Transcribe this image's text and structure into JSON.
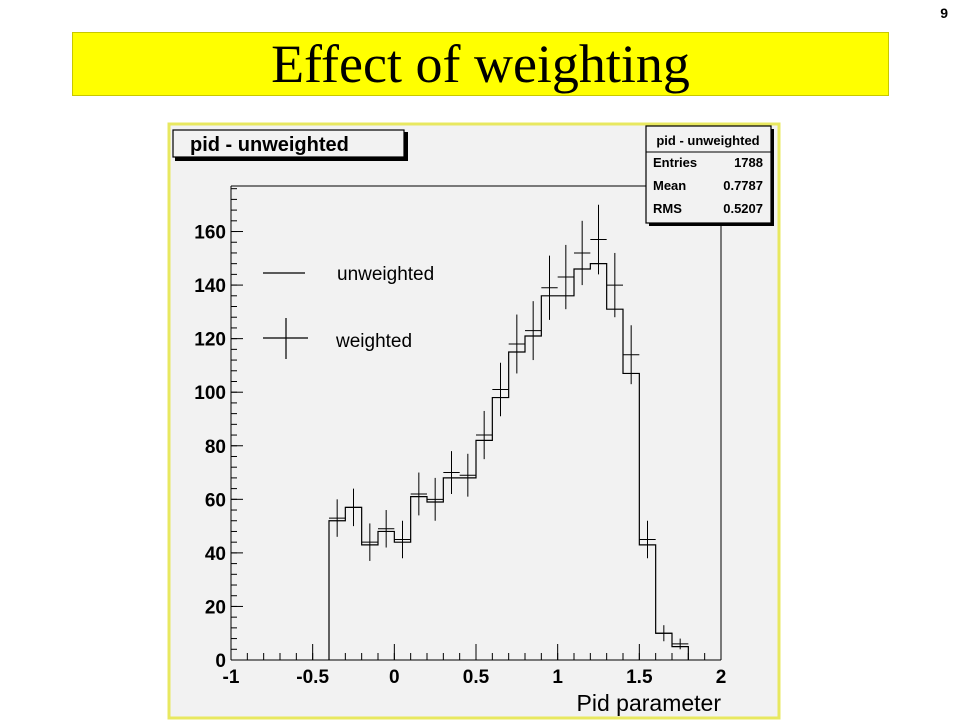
{
  "slide": {
    "number": "9",
    "title": "Effect of weighting"
  },
  "colors": {
    "banner": "#ffff00",
    "panel_border": "#e8e860",
    "panel_bg": "#f2f2f2",
    "ink": "#000000"
  },
  "chart_data": {
    "type": "histogram",
    "hist_title": "pid - unweighted",
    "xlabel": "Pid parameter",
    "ylabel": "",
    "xlim": [
      -1,
      2
    ],
    "ylim": [
      0,
      177
    ],
    "x_ticks": [
      "-1",
      "-0.5",
      "0",
      "0.5",
      "1",
      "1.5",
      "2"
    ],
    "y_ticks": [
      "0",
      "20",
      "40",
      "60",
      "80",
      "100",
      "120",
      "140",
      "160"
    ],
    "grid": false,
    "legend_position": "upper-left",
    "stats_box": {
      "title": "pid - unweighted",
      "rows": [
        {
          "label": "Entries",
          "value": "1788"
        },
        {
          "label": "Mean",
          "value": "0.7787"
        },
        {
          "label": "RMS",
          "value": "0.5207"
        }
      ]
    },
    "bin_width": 0.1,
    "series": [
      {
        "name": "unweighted",
        "style": "step",
        "bin_edges": [
          -0.4,
          -0.3,
          -0.2,
          -0.1,
          0.0,
          0.1,
          0.2,
          0.3,
          0.4,
          0.5,
          0.6,
          0.7,
          0.8,
          0.9,
          1.0,
          1.1,
          1.2,
          1.3,
          1.4,
          1.5,
          1.6,
          1.7,
          1.8
        ],
        "values": [
          52,
          57,
          43,
          48,
          44,
          61,
          59,
          68,
          68,
          82,
          98,
          115,
          121,
          136,
          136,
          146,
          148,
          131,
          107,
          43,
          10,
          5
        ]
      },
      {
        "name": "weighted",
        "style": "errorbar",
        "x": [
          -0.35,
          -0.25,
          -0.15,
          -0.05,
          0.05,
          0.15,
          0.25,
          0.35,
          0.45,
          0.55,
          0.65,
          0.75,
          0.85,
          0.95,
          1.05,
          1.15,
          1.25,
          1.35,
          1.45,
          1.55,
          1.65,
          1.75
        ],
        "values": [
          53,
          57,
          44,
          49,
          45,
          62,
          60,
          70,
          69,
          84,
          101,
          118,
          123,
          139,
          143,
          152,
          157,
          140,
          114,
          45,
          10,
          6
        ],
        "errors": [
          7,
          7,
          7,
          7,
          7,
          8,
          8,
          8,
          8,
          9,
          10,
          11,
          11,
          12,
          12,
          12,
          13,
          12,
          11,
          7,
          3,
          2
        ]
      }
    ]
  }
}
